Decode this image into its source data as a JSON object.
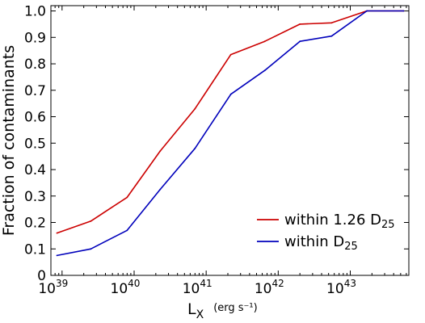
{
  "chart_data": {
    "type": "line",
    "xscale": "log",
    "x": [
      8.5e+38,
      2.5e+39,
      8e+39,
      2.3e+40,
      7e+40,
      2.2e+41,
      6.5e+41,
      2e+42,
      5.5e+42,
      1.7e+43,
      5.5e+43
    ],
    "series": [
      {
        "name": "within 1.26 D",
        "name_subscript": "25",
        "color": "#cc0000",
        "values": [
          0.16,
          0.205,
          0.295,
          0.47,
          0.63,
          0.835,
          0.885,
          0.95,
          0.955,
          1.0,
          1.0
        ]
      },
      {
        "name": "within D",
        "name_subscript": "25",
        "color": "#0000bb",
        "values": [
          0.075,
          0.1,
          0.17,
          0.325,
          0.48,
          0.685,
          0.775,
          0.885,
          0.905,
          1.0,
          1.0
        ]
      }
    ],
    "xlim": [
      7e+38,
      6.5e+43
    ],
    "ylim": [
      0,
      1.02
    ],
    "ylabel": "Fraction of contaminants",
    "xlabel": "L",
    "xlabel_subscript": "X",
    "xlabel_unit": "(erg s⁻¹)",
    "xticks": [
      {
        "value": 1e+39,
        "base": "10",
        "exp": "39"
      },
      {
        "value": 1e+40,
        "base": "10",
        "exp": "40"
      },
      {
        "value": 1e+41,
        "base": "10",
        "exp": "41"
      },
      {
        "value": 1e+42,
        "base": "10",
        "exp": "42"
      },
      {
        "value": 1e+43,
        "base": "10",
        "exp": "43"
      }
    ],
    "yticks": [
      {
        "value": 0,
        "label": "0"
      },
      {
        "value": 0.1,
        "label": "0.1"
      },
      {
        "value": 0.2,
        "label": "0.2"
      },
      {
        "value": 0.3,
        "label": "0.3"
      },
      {
        "value": 0.4,
        "label": "0.4"
      },
      {
        "value": 0.5,
        "label": "0.5"
      },
      {
        "value": 0.6,
        "label": "0.6"
      },
      {
        "value": 0.7,
        "label": "0.7"
      },
      {
        "value": 0.8,
        "label": "0.8"
      },
      {
        "value": 0.9,
        "label": "0.9"
      },
      {
        "value": 1.0,
        "label": "1.0"
      }
    ],
    "grid": false,
    "legend_position": "lower-right"
  }
}
